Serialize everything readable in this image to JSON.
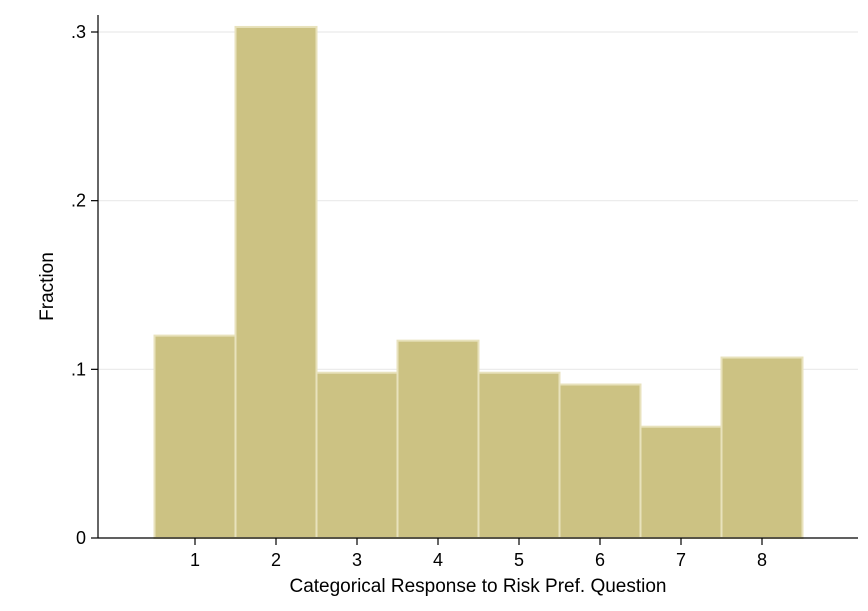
{
  "chart_data": {
    "type": "bar",
    "xlabel": "Categorical Response to Risk Pref. Question",
    "ylabel": "Fraction",
    "categories": [
      "1",
      "2",
      "3",
      "4",
      "5",
      "6",
      "7",
      "8"
    ],
    "x": [
      1,
      2,
      3,
      4,
      5,
      6,
      7,
      8
    ],
    "values": [
      0.12,
      0.303,
      0.098,
      0.117,
      0.098,
      0.091,
      0.066,
      0.107
    ],
    "ylim": [
      0,
      0.3
    ],
    "xlim": [
      0,
      9
    ],
    "y_ticks": [
      0,
      0.1,
      0.2,
      0.3
    ],
    "y_tick_labels": [
      "0",
      ".1",
      ".2",
      ".3"
    ],
    "grid": true,
    "bar_color": "#ccc283",
    "bar_edge_color": "#e8e2bc"
  }
}
